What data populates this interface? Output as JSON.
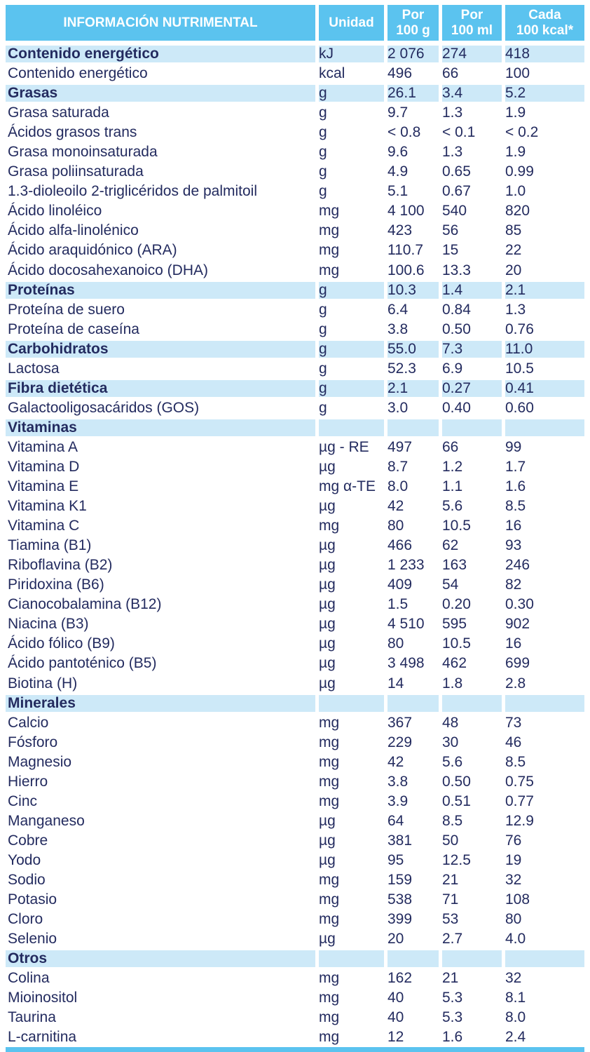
{
  "colors": {
    "header_blue": "#5bc3ef",
    "band_blue": "#cde9f8",
    "text_navy": "#232b5f",
    "header_text": "#ffffff"
  },
  "header": {
    "title": "INFORMACIÓN NUTRIMENTAL",
    "columns": [
      {
        "line1": "Unidad",
        "line2": ""
      },
      {
        "line1": "Por",
        "line2": "100 g"
      },
      {
        "line1": "Por",
        "line2": "100 ml"
      },
      {
        "line1": "Cada",
        "line2": "100 kcal*"
      }
    ]
  },
  "rows": [
    {
      "label": "Contenido energético",
      "unit": "kJ",
      "g": "2 076",
      "ml": "274",
      "kcal": "418",
      "hl": true,
      "bold": true
    },
    {
      "label": "Contenido energético",
      "unit": "kcal",
      "g": "496",
      "ml": "66",
      "kcal": "100"
    },
    {
      "label": "Grasas",
      "unit": "g",
      "g": "26.1",
      "ml": "3.4",
      "kcal": "5.2",
      "hl": true,
      "bold": true
    },
    {
      "label": "Grasa saturada",
      "unit": "g",
      "g": "9.7",
      "ml": "1.3",
      "kcal": "1.9"
    },
    {
      "label": "Ácidos grasos trans",
      "unit": "g",
      "g": "< 0.8",
      "ml": "< 0.1",
      "kcal": "< 0.2"
    },
    {
      "label": "Grasa monoinsaturada",
      "unit": "g",
      "g": "9.6",
      "ml": "1.3",
      "kcal": "1.9"
    },
    {
      "label": "Grasa poliinsaturada",
      "unit": "g",
      "g": "4.9",
      "ml": "0.65",
      "kcal": "0.99"
    },
    {
      "label": "1.3-dioleoilo 2-triglicéridos de palmitoil",
      "unit": "g",
      "g": "5.1",
      "ml": "0.67",
      "kcal": "1.0"
    },
    {
      "label": "Ácido linoléico",
      "unit": "mg",
      "g": "4 100",
      "ml": "540",
      "kcal": "820"
    },
    {
      "label": "Ácido alfa-linolénico",
      "unit": "mg",
      "g": "423",
      "ml": "56",
      "kcal": "85"
    },
    {
      "label": "Ácido araquidónico (ARA)",
      "unit": "mg",
      "g": "110.7",
      "ml": "15",
      "kcal": "22"
    },
    {
      "label": "Ácido docosahexanoico (DHA)",
      "unit": "mg",
      "g": "100.6",
      "ml": "13.3",
      "kcal": "20"
    },
    {
      "label": "Proteínas",
      "unit": "g",
      "g": "10.3",
      "ml": "1.4",
      "kcal": "2.1",
      "hl": true,
      "bold": true
    },
    {
      "label": "Proteína de suero",
      "unit": "g",
      "g": "6.4",
      "ml": "0.84",
      "kcal": "1.3"
    },
    {
      "label": "Proteína de caseína",
      "unit": "g",
      "g": "3.8",
      "ml": "0.50",
      "kcal": "0.76"
    },
    {
      "label": "Carbohidratos",
      "unit": "g",
      "g": "55.0",
      "ml": "7.3",
      "kcal": "11.0",
      "hl": true,
      "bold": true
    },
    {
      "label": "Lactosa",
      "unit": "g",
      "g": "52.3",
      "ml": "6.9",
      "kcal": "10.5"
    },
    {
      "label": "Fibra dietética",
      "unit": "g",
      "g": "2.1",
      "ml": "0.27",
      "kcal": "0.41",
      "hl": true,
      "bold": true
    },
    {
      "label": "Galactooligosacáridos (GOS)",
      "unit": "g",
      "g": "3.0",
      "ml": "0.40",
      "kcal": "0.60"
    },
    {
      "label": "Vitaminas",
      "unit": "",
      "g": "",
      "ml": "",
      "kcal": "",
      "hl": true,
      "bold": true,
      "section": true
    },
    {
      "label": "Vitamina A",
      "unit": "µg - RE",
      "g": "497",
      "ml": "66",
      "kcal": "99"
    },
    {
      "label": "Vitamina D",
      "unit": "µg",
      "g": "8.7",
      "ml": "1.2",
      "kcal": "1.7"
    },
    {
      "label": "Vitamina E",
      "unit": "mg α-TE",
      "g": "8.0",
      "ml": "1.1",
      "kcal": "1.6"
    },
    {
      "label": "Vitamina K1",
      "unit": "µg",
      "g": "42",
      "ml": "5.6",
      "kcal": "8.5"
    },
    {
      "label": "Vitamina C",
      "unit": "mg",
      "g": "80",
      "ml": "10.5",
      "kcal": "16"
    },
    {
      "label": "Tiamina (B1)",
      "unit": "µg",
      "g": "466",
      "ml": "62",
      "kcal": "93"
    },
    {
      "label": "Riboflavina (B2)",
      "unit": "µg",
      "g": "1 233",
      "ml": "163",
      "kcal": "246"
    },
    {
      "label": "Piridoxina (B6)",
      "unit": "µg",
      "g": "409",
      "ml": "54",
      "kcal": "82"
    },
    {
      "label": "Cianocobalamina (B12)",
      "unit": "µg",
      "g": "1.5",
      "ml": "0.20",
      "kcal": "0.30"
    },
    {
      "label": "Niacina (B3)",
      "unit": "µg",
      "g": "4 510",
      "ml": "595",
      "kcal": "902"
    },
    {
      "label": "Ácido fólico (B9)",
      "unit": "µg",
      "g": "80",
      "ml": "10.5",
      "kcal": "16"
    },
    {
      "label": "Ácido pantoténico (B5)",
      "unit": "µg",
      "g": "3 498",
      "ml": "462",
      "kcal": "699"
    },
    {
      "label": "Biotina (H)",
      "unit": "µg",
      "g": "14",
      "ml": "1.8",
      "kcal": "2.8"
    },
    {
      "label": "Minerales",
      "unit": "",
      "g": "",
      "ml": "",
      "kcal": "",
      "hl": true,
      "bold": true,
      "section": true
    },
    {
      "label": "Calcio",
      "unit": "mg",
      "g": "367",
      "ml": "48",
      "kcal": "73"
    },
    {
      "label": "Fósforo",
      "unit": "mg",
      "g": "229",
      "ml": "30",
      "kcal": "46"
    },
    {
      "label": "Magnesio",
      "unit": "mg",
      "g": "42",
      "ml": "5.6",
      "kcal": "8.5"
    },
    {
      "label": "Hierro",
      "unit": "mg",
      "g": "3.8",
      "ml": "0.50",
      "kcal": "0.75"
    },
    {
      "label": "Cinc",
      "unit": "mg",
      "g": "3.9",
      "ml": "0.51",
      "kcal": "0.77"
    },
    {
      "label": "Manganeso",
      "unit": "µg",
      "g": "64",
      "ml": "8.5",
      "kcal": "12.9"
    },
    {
      "label": "Cobre",
      "unit": "µg",
      "g": "381",
      "ml": "50",
      "kcal": "76"
    },
    {
      "label": "Yodo",
      "unit": "µg",
      "g": "95",
      "ml": "12.5",
      "kcal": "19"
    },
    {
      "label": "Sodio",
      "unit": "mg",
      "g": "159",
      "ml": "21",
      "kcal": "32"
    },
    {
      "label": "Potasio",
      "unit": "mg",
      "g": "538",
      "ml": "71",
      "kcal": "108"
    },
    {
      "label": "Cloro",
      "unit": "mg",
      "g": "399",
      "ml": "53",
      "kcal": "80"
    },
    {
      "label": "Selenio",
      "unit": "µg",
      "g": "20",
      "ml": "2.7",
      "kcal": "4.0"
    },
    {
      "label": "Otros",
      "unit": "",
      "g": "",
      "ml": "",
      "kcal": "",
      "hl": true,
      "bold": true,
      "section": true
    },
    {
      "label": "Colina",
      "unit": "mg",
      "g": "162",
      "ml": "21",
      "kcal": "32"
    },
    {
      "label": "Mioinositol",
      "unit": "mg",
      "g": "40",
      "ml": "5.3",
      "kcal": "8.1"
    },
    {
      "label": "Taurina",
      "unit": "mg",
      "g": "40",
      "ml": "5.3",
      "kcal": "8.0"
    },
    {
      "label": "L-carnitina",
      "unit": "mg",
      "g": "12",
      "ml": "1.6",
      "kcal": "2.4"
    }
  ]
}
